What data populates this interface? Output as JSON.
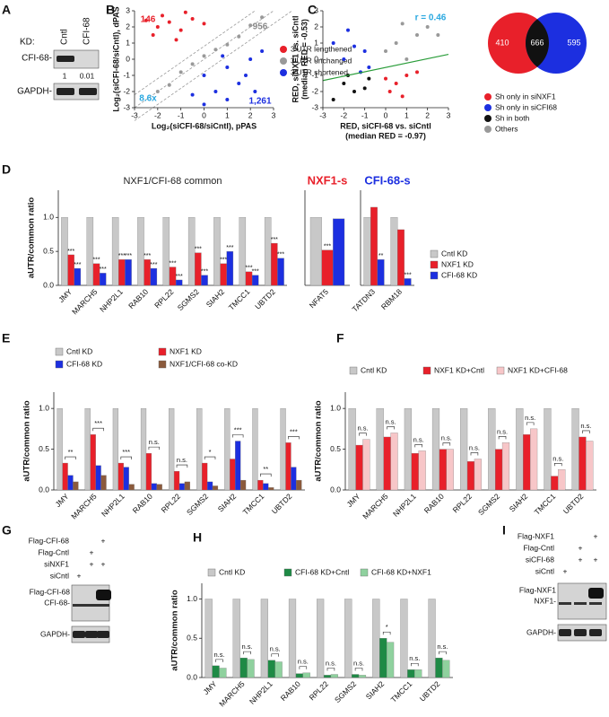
{
  "panel_labels": [
    "A",
    "B",
    "C",
    "D",
    "E",
    "F",
    "G",
    "H",
    "I"
  ],
  "blot_a": {
    "header": "KD:",
    "lanes": [
      "Cntl",
      "CFI-68"
    ],
    "band": "CFI-68-",
    "quant": [
      1,
      0.01
    ],
    "loading": "GAPDH-"
  },
  "blot_g": {
    "rows": [
      {
        "label": "Flag-CFI-68",
        "lanes": [
          null,
          null,
          "+"
        ]
      },
      {
        "label": "Flag-Cntl",
        "lanes": [
          null,
          "+",
          null
        ]
      },
      {
        "label": "siNXF1",
        "lanes": [
          null,
          "+",
          "+"
        ]
      },
      {
        "label": "siCntl",
        "lanes": [
          "+",
          null,
          null
        ]
      }
    ],
    "bands": [
      "Flag-CFI-68",
      "CFI-68-"
    ],
    "loading": "GAPDH-"
  },
  "blot_i": {
    "rows": [
      {
        "label": "Flag-NXF1",
        "lanes": [
          null,
          null,
          "+"
        ]
      },
      {
        "label": "Flag-Cntl",
        "lanes": [
          null,
          "+",
          null
        ]
      },
      {
        "label": "siCFI-68",
        "lanes": [
          null,
          "+",
          "+"
        ]
      },
      {
        "label": "siCntl",
        "lanes": [
          "+",
          null,
          null
        ]
      }
    ],
    "bands": [
      "Flag-NXF1",
      "NXF1-"
    ],
    "loading": "GAPDH-"
  },
  "venn": {
    "values": [
      410,
      666,
      595
    ],
    "colors": [
      "#e8202a",
      "#111111",
      "#1c2fe0"
    ]
  },
  "chart_data": [
    {
      "type": "scatter",
      "xlabel": [
        "Log₂(siCFI-68/siCntl), pPAS"
      ],
      "ylabel": [
        "Log₂(siCFI-68/siCntl), dPAS"
      ],
      "xlim": [
        -3,
        3
      ],
      "ylim": [
        -3,
        3
      ],
      "xticks": [
        -3,
        -2,
        -1,
        0,
        1,
        2,
        3
      ],
      "yticks": [
        -3,
        -2,
        -1,
        0,
        1,
        2,
        3
      ],
      "legend": "right",
      "annotations": [
        {
          "text": "146",
          "color": "#e8202a"
        },
        {
          "text": "956",
          "color": "#888888"
        },
        {
          "text": "1,261",
          "color": "#1c2fe0"
        },
        {
          "text": "8.6x",
          "color": "#29a8e0"
        }
      ],
      "series": [
        {
          "name": "3'UTR lengthened",
          "color": "#e8202a",
          "values": [
            [
              -2,
              2
            ],
            [
              -1.5,
              2.3
            ],
            [
              -1,
              1.8
            ],
            [
              -2.2,
              1.5
            ],
            [
              -0.5,
              2.5
            ],
            [
              -1.8,
              2.7
            ],
            [
              -1.2,
              1.2
            ],
            [
              0,
              2.2
            ],
            [
              -2.5,
              2.4
            ],
            [
              -0.8,
              2.9
            ]
          ]
        },
        {
          "name": "3'UTR unchanged",
          "color": "#999999",
          "values": [
            [
              -2,
              -2
            ],
            [
              -1,
              -0.8
            ],
            [
              0,
              0.2
            ],
            [
              1,
              0.9
            ],
            [
              2,
              2.1
            ],
            [
              -0.5,
              -0.3
            ],
            [
              0.5,
              0.6
            ],
            [
              1.5,
              1.4
            ],
            [
              2.5,
              2.6
            ],
            [
              -1.5,
              -1.6
            ]
          ]
        },
        {
          "name": "3'UTR shortened",
          "color": "#1c2fe0",
          "values": [
            [
              0,
              -1
            ],
            [
              1,
              -0.5
            ],
            [
              1.5,
              -1.5
            ],
            [
              2,
              0
            ],
            [
              0.5,
              -2
            ],
            [
              1,
              -2.5
            ],
            [
              2.5,
              0.5
            ],
            [
              -0.5,
              -2.2
            ],
            [
              1.8,
              -1
            ],
            [
              0.8,
              0.2
            ],
            [
              2.2,
              -2
            ],
            [
              0,
              -2.8
            ]
          ]
        }
      ]
    },
    {
      "type": "scatter",
      "xlabel": [
        "RED, siCFI-68 vs. siCntl",
        "(median RED = -0.97)"
      ],
      "ylabel": [
        "RED, siNXF1 vs. siCntl",
        "(median RED = -0.53)"
      ],
      "xlim": [
        -3,
        3
      ],
      "ylim": [
        -3,
        3
      ],
      "xticks": [
        -3,
        -2,
        -1,
        0,
        1,
        2,
        3
      ],
      "yticks": [
        -3,
        -2,
        -1,
        0,
        1,
        2,
        3
      ],
      "legend": "right",
      "annotations": [
        {
          "text": "r = 0.46",
          "color": "#29a8e0"
        }
      ],
      "series": [
        {
          "name": "Sh only in siNXF1",
          "color": "#e8202a",
          "values": [
            [
              0.5,
              -1.5
            ],
            [
              1,
              -1
            ],
            [
              0.2,
              -2
            ],
            [
              1.5,
              -0.8
            ],
            [
              0.8,
              -2.3
            ],
            [
              0,
              -1.2
            ]
          ]
        },
        {
          "name": "Sh only in siCFI68",
          "color": "#1c2fe0",
          "values": [
            [
              -2,
              0
            ],
            [
              -1.5,
              0.8
            ],
            [
              -1,
              0.5
            ],
            [
              -2.5,
              1
            ],
            [
              -0.8,
              -0.5
            ],
            [
              -1.8,
              1.8
            ],
            [
              -1.2,
              -0.8
            ]
          ]
        },
        {
          "name": "Sh in both",
          "color": "#111111",
          "values": [
            [
              -2,
              -1.5
            ],
            [
              -1.5,
              -2
            ],
            [
              -1,
              -1.8
            ],
            [
              -2.5,
              -2.5
            ],
            [
              -0.8,
              -1.2
            ],
            [
              -1.8,
              -1
            ]
          ]
        },
        {
          "name": "Others",
          "color": "#999999",
          "values": [
            [
              0.5,
              1
            ],
            [
              1.5,
              1.5
            ],
            [
              0,
              0.5
            ],
            [
              2,
              2
            ],
            [
              1,
              0
            ],
            [
              2.5,
              1.5
            ],
            [
              0.8,
              2.2
            ]
          ]
        }
      ]
    },
    {
      "type": "bar",
      "title": "NXF1/CFI-68 common",
      "title_color": "#222222",
      "ylabel": "aUTR/common ratio",
      "ylim": [
        0,
        1.4
      ],
      "yticks": [
        {
          "value": 0,
          "label": "0.0"
        },
        {
          "value": 0.5,
          "label": "0.5"
        },
        {
          "value": 1,
          "label": "1.0"
        }
      ],
      "categories": [
        "JMY",
        "MARCH5",
        "NHP2L1",
        "RAB10",
        "RPL22",
        "SGMS2",
        "SIAH2",
        "TMCC1",
        "UBTD2"
      ],
      "series": [
        {
          "color": "#c8c8c8",
          "values": [
            1,
            1,
            1,
            1,
            1,
            1,
            1,
            1,
            1
          ]
        },
        {
          "color": "#e8202a",
          "values": [
            0.45,
            0.32,
            0.38,
            0.38,
            0.27,
            0.48,
            0.32,
            0.2,
            0.62
          ],
          "sig": [
            "***",
            "***",
            "***",
            "***",
            "***",
            "***",
            "***",
            "***",
            "***"
          ]
        },
        {
          "color": "#1c2fe0",
          "values": [
            0.25,
            0.18,
            0.38,
            0.25,
            0.08,
            0.15,
            0.5,
            0.15,
            0.4
          ],
          "sig": [
            "***",
            "***",
            "***",
            "***",
            "***",
            "***",
            "***",
            "***",
            "***"
          ]
        }
      ]
    },
    {
      "type": "bar",
      "title": "NXF1-s",
      "title_color": "#e8202a",
      "ylim": [
        0,
        1.4
      ],
      "categories": [
        "NFAT5"
      ],
      "series": [
        {
          "color": "#c8c8c8",
          "values": [
            1
          ]
        },
        {
          "color": "#e8202a",
          "values": [
            0.52
          ],
          "sig": [
            "***"
          ]
        },
        {
          "color": "#1c2fe0",
          "values": [
            0.98
          ],
          "sig": [
            null
          ]
        }
      ]
    },
    {
      "type": "bar",
      "title": "CFI-68-s",
      "title_color": "#1c2fe0",
      "ylim": [
        0,
        1.4
      ],
      "categories": [
        "TATDN3",
        "RBM18"
      ],
      "legend": "right",
      "series": [
        {
          "name": "Cntl KD",
          "color": "#c8c8c8",
          "values": [
            1,
            1
          ]
        },
        {
          "name": "NXF1 KD",
          "color": "#e8202a",
          "values": [
            1.15,
            0.82
          ],
          "sig": [
            null,
            null
          ]
        },
        {
          "name": "CFI-68 KD",
          "color": "#1c2fe0",
          "values": [
            0.38,
            0.1
          ],
          "sig": [
            "**",
            "***"
          ]
        }
      ]
    },
    {
      "type": "bar",
      "ylabel": "aUTR/common ratio",
      "ylim": [
        0,
        1.2
      ],
      "legend": "top",
      "yticks": [
        {
          "value": 0,
          "label": "0.0"
        },
        {
          "value": 0.5,
          "label": "0.5"
        },
        {
          "value": 1,
          "label": "1.0"
        }
      ],
      "categories": [
        "JMY",
        "MARCH5",
        "NHP2L1",
        "RAB10",
        "RPL22",
        "SGMS2",
        "SIAH2",
        "TMCC1",
        "UBTD2"
      ],
      "brackets": [
        "**",
        "***",
        "***",
        "n.s.",
        "n.s.",
        "*",
        "***",
        "**",
        "***"
      ],
      "series": [
        {
          "name": "Cntl KD",
          "color": "#c8c8c8",
          "values": [
            1,
            1,
            1,
            1,
            1,
            1,
            1,
            1,
            1
          ]
        },
        {
          "name": "NXF1 KD",
          "color": "#e8202a",
          "values": [
            0.33,
            0.68,
            0.33,
            0.45,
            0.23,
            0.33,
            0.38,
            0.12,
            0.58
          ]
        },
        {
          "name": "CFI-68 KD",
          "color": "#1c2fe0",
          "values": [
            0.18,
            0.3,
            0.28,
            0.08,
            0.08,
            0.1,
            0.6,
            0.08,
            0.28
          ]
        },
        {
          "name": "NXF1/CFI-68 co-KD",
          "color": "#8b5a3c",
          "values": [
            0.1,
            0.18,
            0.07,
            0.07,
            0.1,
            0.05,
            0.12,
            0.03,
            0.12
          ]
        }
      ]
    },
    {
      "type": "bar",
      "ylabel": "aUTR/common ratio",
      "ylim": [
        0,
        1.2
      ],
      "legend": "top",
      "yticks": [
        {
          "value": 0,
          "label": "0.0"
        },
        {
          "value": 0.5,
          "label": "0.5"
        },
        {
          "value": 1,
          "label": "1.0"
        }
      ],
      "categories": [
        "JMY",
        "MARCH5",
        "NHP2L1",
        "RAB10",
        "RPL22",
        "SGMS2",
        "SIAH2",
        "TMCC1",
        "UBTD2"
      ],
      "brackets": [
        "n.s.",
        "n.s.",
        "n.s.",
        "n.s.",
        "n.s.",
        "n.s.",
        "n.s.",
        "n.s.",
        "n.s."
      ],
      "series": [
        {
          "name": "Cntl KD",
          "color": "#c8c8c8",
          "values": [
            1,
            1,
            1,
            1,
            1,
            1,
            1,
            1,
            1
          ]
        },
        {
          "name": "NXF1 KD+Cntl",
          "color": "#e8202a",
          "values": [
            0.55,
            0.65,
            0.45,
            0.5,
            0.35,
            0.5,
            0.68,
            0.17,
            0.65
          ]
        },
        {
          "name": "NXF1 KD+CFI-68",
          "color": "#f7c6c8",
          "values": [
            0.62,
            0.7,
            0.48,
            0.5,
            0.38,
            0.58,
            0.75,
            0.25,
            0.6
          ]
        }
      ]
    },
    {
      "type": "bar",
      "ylabel": "aUTR/common ratio",
      "ylim": [
        0,
        1.2
      ],
      "legend": "top",
      "yticks": [
        {
          "value": 0,
          "label": "0.0"
        },
        {
          "value": 0.5,
          "label": "0.5"
        },
        {
          "value": 1,
          "label": "1.0"
        }
      ],
      "categories": [
        "JMY",
        "MARCH5",
        "NHP2L1",
        "RAB10",
        "RPL22",
        "SGMS2",
        "SIAH2",
        "TMCC1",
        "UBTD2"
      ],
      "brackets": [
        "n.s.",
        "n.s.",
        "n.s.",
        "n.s.",
        "n.s.",
        "n.s.",
        "*",
        "n.s.",
        "n.s."
      ],
      "series": [
        {
          "name": "Cntl KD",
          "color": "#c8c8c8",
          "values": [
            1,
            1,
            1,
            1,
            1,
            1,
            1,
            1,
            1
          ]
        },
        {
          "name": "CFI-68 KD+Cntl",
          "color": "#1e8a45",
          "values": [
            0.15,
            0.25,
            0.22,
            0.05,
            0.03,
            0.04,
            0.5,
            0.1,
            0.25
          ]
        },
        {
          "name": "CFI-68 KD+NXF1",
          "color": "#8fd19e",
          "values": [
            0.12,
            0.23,
            0.2,
            0.06,
            0.04,
            0.03,
            0.45,
            0.1,
            0.22
          ]
        }
      ]
    }
  ]
}
